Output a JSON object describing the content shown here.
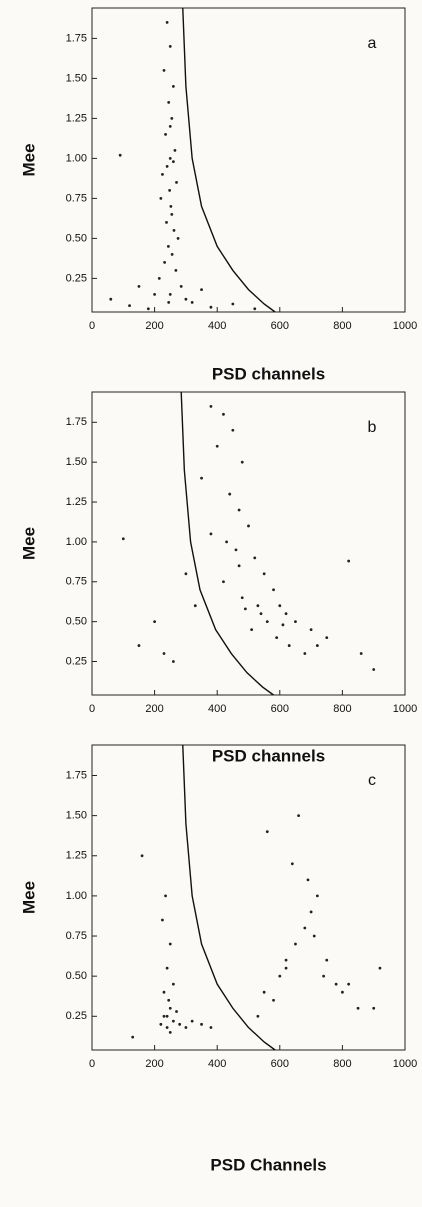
{
  "chart_data": [
    {
      "type": "scatter",
      "panel_label": "a",
      "xlabel": "PSD channels",
      "ylabel": "Mee",
      "xlim": [
        0,
        1000
      ],
      "ylim": [
        0.04,
        1.94
      ],
      "xticks": [
        0,
        200,
        400,
        600,
        800,
        1000
      ],
      "yticks": [
        0.25,
        {
          "value": 0.5,
          "label": "0.50"
        },
        0.75,
        {
          "value": 1.0,
          "label": "1.00"
        },
        1.25,
        {
          "value": 1.5,
          "label": "1.50"
        },
        1.75
      ],
      "series": [
        {
          "type": "scatter",
          "color": "#222222",
          "x": [
            240,
            250,
            230,
            260,
            245,
            255,
            235,
            265,
            250,
            240,
            225,
            270,
            248,
            252,
            238,
            262,
            244,
            256,
            232,
            268,
            215,
            285,
            275,
            220,
            250,
            245,
            255,
            120,
            60,
            180,
            320,
            380,
            450,
            520,
            150,
            200,
            300,
            350,
            90,
            250,
            260
          ],
          "values": [
            1.85,
            1.7,
            1.55,
            1.45,
            1.35,
            1.25,
            1.15,
            1.05,
            1.0,
            0.95,
            0.9,
            0.85,
            0.8,
            0.7,
            0.6,
            0.55,
            0.45,
            0.4,
            0.35,
            0.3,
            0.25,
            0.2,
            0.5,
            0.75,
            0.15,
            0.1,
            0.65,
            0.08,
            0.12,
            0.06,
            0.1,
            0.07,
            0.09,
            0.06,
            0.2,
            0.15,
            0.12,
            0.18,
            1.02,
            1.2,
            0.98
          ]
        },
        {
          "type": "line",
          "color": "#111111",
          "x": [
            290,
            300,
            320,
            350,
            400,
            450,
            500,
            550,
            585
          ],
          "values": [
            1.94,
            1.45,
            1.0,
            0.7,
            0.45,
            0.3,
            0.18,
            0.09,
            0.04
          ]
        }
      ]
    },
    {
      "type": "scatter",
      "panel_label": "b",
      "xlabel": "PSD channels",
      "ylabel": "Mee",
      "xlim": [
        0,
        1000
      ],
      "ylim": [
        0.04,
        1.94
      ],
      "xticks": [
        0,
        200,
        400,
        600,
        800,
        1000
      ],
      "yticks": [
        0.25,
        {
          "value": 0.5,
          "label": "0.50"
        },
        0.75,
        {
          "value": 1.0,
          "label": "1.00"
        },
        1.25,
        {
          "value": 1.5,
          "label": "1.50"
        },
        1.75
      ],
      "series": [
        {
          "type": "scatter",
          "color": "#222222",
          "x": [
            380,
            420,
            450,
            400,
            480,
            350,
            440,
            470,
            500,
            430,
            460,
            520,
            550,
            580,
            600,
            620,
            650,
            700,
            750,
            480,
            540,
            560,
            510,
            590,
            630,
            680,
            720,
            820,
            860,
            900,
            200,
            230,
            260,
            150,
            100,
            300,
            330,
            420,
            470,
            380,
            530,
            610,
            490
          ],
          "values": [
            1.85,
            1.8,
            1.7,
            1.6,
            1.5,
            1.4,
            1.3,
            1.2,
            1.1,
            1.0,
            0.95,
            0.9,
            0.8,
            0.7,
            0.6,
            0.55,
            0.5,
            0.45,
            0.4,
            0.65,
            0.55,
            0.5,
            0.45,
            0.4,
            0.35,
            0.3,
            0.35,
            0.88,
            0.3,
            0.2,
            0.5,
            0.3,
            0.25,
            0.35,
            1.02,
            0.8,
            0.6,
            0.75,
            0.85,
            1.05,
            0.6,
            0.48,
            0.58
          ]
        },
        {
          "type": "line",
          "color": "#111111",
          "x": [
            285,
            295,
            315,
            345,
            395,
            445,
            495,
            545,
            580
          ],
          "values": [
            1.94,
            1.45,
            1.0,
            0.7,
            0.45,
            0.3,
            0.18,
            0.09,
            0.04
          ]
        }
      ]
    },
    {
      "type": "scatter",
      "panel_label": "c",
      "xlabel": "PSD Channels",
      "ylabel": "Mee",
      "xlim": [
        0,
        1000
      ],
      "ylim": [
        0.04,
        1.94
      ],
      "xticks": [
        0,
        200,
        400,
        600,
        800,
        1000
      ],
      "yticks": [
        0.25,
        {
          "value": 0.5,
          "label": "0.50"
        },
        0.75,
        {
          "value": 1.0,
          "label": "1.00"
        },
        1.25,
        {
          "value": 1.5,
          "label": "1.50"
        },
        1.75
      ],
      "series": [
        {
          "type": "scatter",
          "color": "#222222",
          "x": [
            220,
            230,
            240,
            250,
            260,
            270,
            280,
            300,
            320,
            350,
            230,
            240,
            250,
            225,
            235,
            245,
            260,
            380,
            250,
            240,
            130,
            160,
            550,
            600,
            620,
            650,
            680,
            700,
            720,
            750,
            780,
            800,
            850,
            900,
            560,
            640,
            690,
            710,
            620,
            580,
            530,
            660,
            740,
            820,
            920
          ],
          "values": [
            0.2,
            0.25,
            0.18,
            0.3,
            0.22,
            0.28,
            0.2,
            0.18,
            0.22,
            0.2,
            0.4,
            0.55,
            0.7,
            0.85,
            1.0,
            0.35,
            0.45,
            0.18,
            0.15,
            0.25,
            0.12,
            1.25,
            0.4,
            0.5,
            0.6,
            0.7,
            0.8,
            0.9,
            1.0,
            0.6,
            0.45,
            0.4,
            0.3,
            0.3,
            1.4,
            1.2,
            1.1,
            0.75,
            0.55,
            0.35,
            0.25,
            1.5,
            0.5,
            0.45,
            0.55
          ]
        },
        {
          "type": "line",
          "color": "#111111",
          "x": [
            290,
            300,
            320,
            350,
            400,
            450,
            500,
            550,
            585
          ],
          "values": [
            1.94,
            1.45,
            1.0,
            0.7,
            0.45,
            0.3,
            0.18,
            0.09,
            0.04
          ]
        }
      ]
    }
  ]
}
